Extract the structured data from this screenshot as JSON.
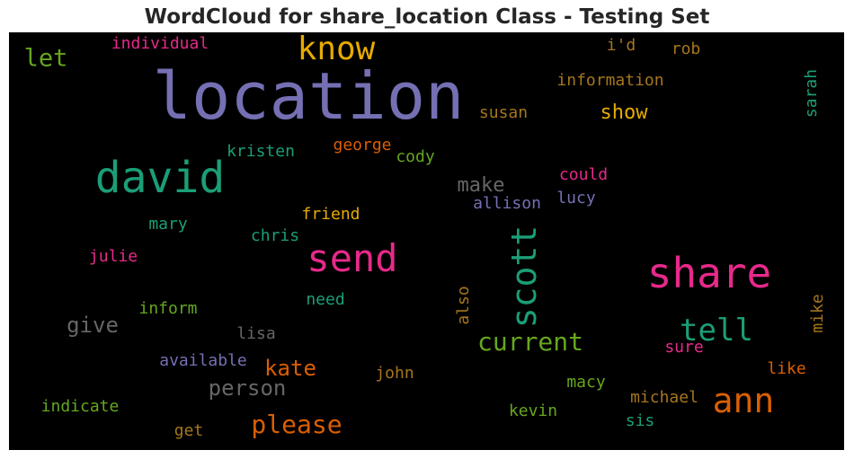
{
  "chart_data": {
    "type": "wordcloud",
    "title": "WordCloud for share_location Class - Testing Set",
    "background": "#000000",
    "words": [
      {
        "text": "location",
        "color": "#7570b3",
        "orientation": "horizontal"
      },
      {
        "text": "know",
        "color": "#e6ab02",
        "orientation": "horizontal"
      },
      {
        "text": "let",
        "color": "#66a61e",
        "orientation": "horizontal"
      },
      {
        "text": "individual",
        "color": "#e7298a",
        "orientation": "horizontal"
      },
      {
        "text": "i'd",
        "color": "#a6761d",
        "orientation": "horizontal"
      },
      {
        "text": "rob",
        "color": "#a6761d",
        "orientation": "horizontal"
      },
      {
        "text": "information",
        "color": "#a6761d",
        "orientation": "horizontal"
      },
      {
        "text": "sarah",
        "color": "#1b9e77",
        "orientation": "vertical"
      },
      {
        "text": "susan",
        "color": "#a6761d",
        "orientation": "horizontal"
      },
      {
        "text": "show",
        "color": "#e6ab02",
        "orientation": "horizontal"
      },
      {
        "text": "david",
        "color": "#1b9e77",
        "orientation": "horizontal"
      },
      {
        "text": "kristen",
        "color": "#1b9e77",
        "orientation": "horizontal"
      },
      {
        "text": "george",
        "color": "#d95f02",
        "orientation": "horizontal"
      },
      {
        "text": "cody",
        "color": "#66a61e",
        "orientation": "horizontal"
      },
      {
        "text": "could",
        "color": "#e7298a",
        "orientation": "horizontal"
      },
      {
        "text": "make",
        "color": "#666666",
        "orientation": "horizontal"
      },
      {
        "text": "allison",
        "color": "#7570b3",
        "orientation": "horizontal"
      },
      {
        "text": "lucy",
        "color": "#7570b3",
        "orientation": "horizontal"
      },
      {
        "text": "friend",
        "color": "#e6ab02",
        "orientation": "horizontal"
      },
      {
        "text": "mary",
        "color": "#1b9e77",
        "orientation": "horizontal"
      },
      {
        "text": "chris",
        "color": "#1b9e77",
        "orientation": "horizontal"
      },
      {
        "text": "send",
        "color": "#e7298a",
        "orientation": "horizontal"
      },
      {
        "text": "scott",
        "color": "#1b9e77",
        "orientation": "vertical"
      },
      {
        "text": "share",
        "color": "#e7298a",
        "orientation": "horizontal"
      },
      {
        "text": "julie",
        "color": "#e7298a",
        "orientation": "horizontal"
      },
      {
        "text": "need",
        "color": "#1b9e77",
        "orientation": "horizontal"
      },
      {
        "text": "also",
        "color": "#a6761d",
        "orientation": "vertical"
      },
      {
        "text": "mike",
        "color": "#a6761d",
        "orientation": "vertical"
      },
      {
        "text": "inform",
        "color": "#66a61e",
        "orientation": "horizontal"
      },
      {
        "text": "give",
        "color": "#666666",
        "orientation": "horizontal"
      },
      {
        "text": "lisa",
        "color": "#666666",
        "orientation": "horizontal"
      },
      {
        "text": "tell",
        "color": "#1b9e77",
        "orientation": "horizontal"
      },
      {
        "text": "current",
        "color": "#66a61e",
        "orientation": "horizontal"
      },
      {
        "text": "sure",
        "color": "#e7298a",
        "orientation": "horizontal"
      },
      {
        "text": "available",
        "color": "#7570b3",
        "orientation": "horizontal"
      },
      {
        "text": "kate",
        "color": "#d95f02",
        "orientation": "horizontal"
      },
      {
        "text": "john",
        "color": "#a6761d",
        "orientation": "horizontal"
      },
      {
        "text": "like",
        "color": "#d95f02",
        "orientation": "horizontal"
      },
      {
        "text": "person",
        "color": "#666666",
        "orientation": "horizontal"
      },
      {
        "text": "macy",
        "color": "#66a61e",
        "orientation": "horizontal"
      },
      {
        "text": "ann",
        "color": "#d95f02",
        "orientation": "horizontal"
      },
      {
        "text": "michael",
        "color": "#a6761d",
        "orientation": "horizontal"
      },
      {
        "text": "indicate",
        "color": "#66a61e",
        "orientation": "horizontal"
      },
      {
        "text": "please",
        "color": "#d95f02",
        "orientation": "horizontal"
      },
      {
        "text": "kevin",
        "color": "#66a61e",
        "orientation": "horizontal"
      },
      {
        "text": "sis",
        "color": "#1b9e77",
        "orientation": "horizontal"
      },
      {
        "text": "get",
        "color": "#a6761d",
        "orientation": "horizontal"
      }
    ]
  }
}
